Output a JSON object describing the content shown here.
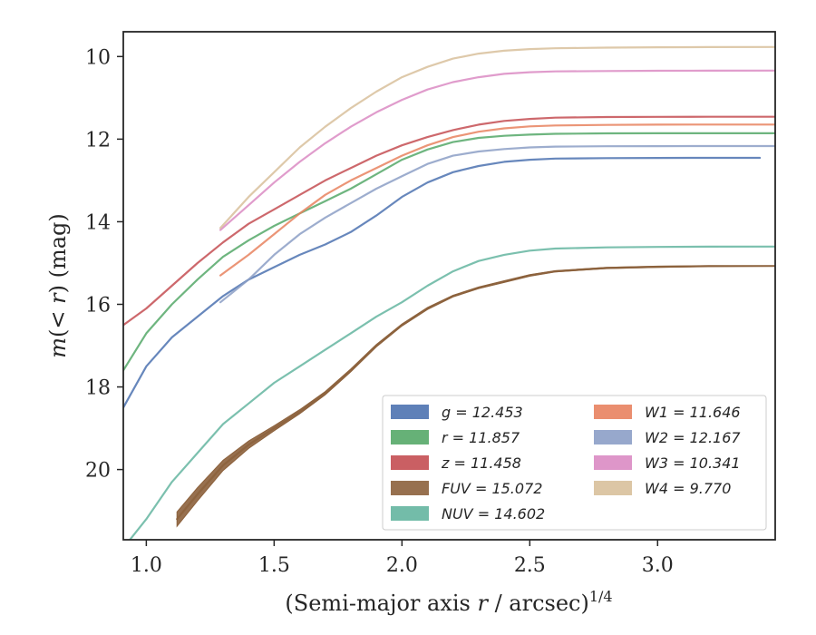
{
  "chart_data": {
    "type": "line",
    "title": "",
    "xlabel": "(Semi-major axis r / arcsec)^1/4",
    "ylabel": "m(< r) (mag)",
    "xlim": [
      0.91,
      3.46
    ],
    "ylim": [
      21.7,
      9.4
    ],
    "y_inverted": true,
    "x_ticks": [
      "1.0",
      "1.5",
      "2.0",
      "2.5",
      "3.0"
    ],
    "y_ticks": [
      "10",
      "12",
      "14",
      "16",
      "18",
      "20"
    ],
    "grid": false,
    "legend_position": "bottom-right",
    "series": [
      {
        "name": "g = 12.453",
        "color": "#4c72b0",
        "x": [
          0.91,
          1.0,
          1.1,
          1.2,
          1.3,
          1.4,
          1.5,
          1.6,
          1.7,
          1.8,
          1.9,
          2.0,
          2.1,
          2.2,
          2.3,
          2.4,
          2.5,
          2.6,
          2.8,
          3.0,
          3.2,
          3.4
        ],
        "y": [
          18.5,
          17.5,
          16.8,
          16.3,
          15.8,
          15.4,
          15.1,
          14.8,
          14.55,
          14.25,
          13.85,
          13.4,
          13.05,
          12.8,
          12.65,
          12.55,
          12.5,
          12.47,
          12.46,
          12.455,
          12.453,
          12.453
        ]
      },
      {
        "name": "r = 11.857",
        "color": "#55a868",
        "x": [
          0.91,
          1.0,
          1.1,
          1.2,
          1.3,
          1.4,
          1.5,
          1.6,
          1.7,
          1.8,
          1.9,
          2.0,
          2.1,
          2.2,
          2.3,
          2.4,
          2.5,
          2.6,
          2.8,
          3.0,
          3.2,
          3.46
        ],
        "y": [
          17.6,
          16.7,
          16.0,
          15.4,
          14.85,
          14.45,
          14.1,
          13.8,
          13.5,
          13.2,
          12.85,
          12.5,
          12.25,
          12.07,
          11.97,
          11.92,
          11.89,
          11.87,
          11.86,
          11.858,
          11.857,
          11.857
        ]
      },
      {
        "name": "z = 11.458",
        "color": "#c44e52",
        "x": [
          0.91,
          1.0,
          1.1,
          1.2,
          1.3,
          1.4,
          1.5,
          1.6,
          1.7,
          1.8,
          1.9,
          2.0,
          2.1,
          2.2,
          2.3,
          2.4,
          2.5,
          2.6,
          2.8,
          3.0,
          3.2,
          3.46
        ],
        "y": [
          16.5,
          16.1,
          15.55,
          15.0,
          14.5,
          14.05,
          13.7,
          13.35,
          13.0,
          12.7,
          12.4,
          12.15,
          11.95,
          11.78,
          11.65,
          11.56,
          11.51,
          11.48,
          11.465,
          11.46,
          11.458,
          11.458
        ]
      },
      {
        "name": "FUV = 15.072",
        "color": "#8c613c",
        "x": [
          1.12,
          1.2,
          1.3,
          1.4,
          1.5,
          1.6,
          1.7,
          1.8,
          1.9,
          2.0,
          2.1,
          2.2,
          2.3,
          2.4,
          2.5,
          2.6,
          2.8,
          3.0,
          3.2,
          3.46
        ],
        "y": [
          21.2,
          20.6,
          19.9,
          19.4,
          19.0,
          18.6,
          18.15,
          17.6,
          17.0,
          16.5,
          16.1,
          15.8,
          15.6,
          15.45,
          15.3,
          15.2,
          15.12,
          15.09,
          15.075,
          15.072
        ],
        "band": [
          0.35,
          0.32,
          0.25,
          0.18,
          0.12,
          0.1,
          0.08,
          0.07,
          0.06,
          0.05,
          0.05,
          0.04,
          0.04,
          0.04,
          0.04,
          0.03,
          0.03,
          0.03,
          0.02,
          0.0
        ]
      },
      {
        "name": "NUV = 14.602",
        "color": "#64b5a0",
        "x": [
          0.91,
          1.0,
          1.1,
          1.2,
          1.3,
          1.4,
          1.5,
          1.6,
          1.7,
          1.8,
          1.9,
          2.0,
          2.1,
          2.2,
          2.3,
          2.4,
          2.5,
          2.6,
          2.8,
          3.0,
          3.2,
          3.46
        ],
        "y": [
          21.9,
          21.2,
          20.3,
          19.6,
          18.9,
          18.4,
          17.9,
          17.5,
          17.1,
          16.7,
          16.3,
          15.95,
          15.55,
          15.2,
          14.95,
          14.8,
          14.7,
          14.65,
          14.62,
          14.61,
          14.603,
          14.602
        ]
      },
      {
        "name": "W1 = 11.646",
        "color": "#e8825f",
        "x": [
          1.29,
          1.4,
          1.5,
          1.6,
          1.7,
          1.8,
          1.9,
          2.0,
          2.1,
          2.2,
          2.3,
          2.4,
          2.5,
          2.6,
          2.8,
          3.0,
          3.2,
          3.46
        ],
        "y": [
          15.3,
          14.8,
          14.3,
          13.8,
          13.35,
          13.0,
          12.7,
          12.4,
          12.15,
          11.95,
          11.82,
          11.74,
          11.69,
          11.67,
          11.655,
          11.65,
          11.647,
          11.646
        ]
      },
      {
        "name": "W2 = 12.167",
        "color": "#8c9fc6",
        "x": [
          1.29,
          1.4,
          1.5,
          1.6,
          1.7,
          1.8,
          1.9,
          2.0,
          2.1,
          2.2,
          2.3,
          2.4,
          2.5,
          2.6,
          2.8,
          3.0,
          3.2,
          3.46
        ],
        "y": [
          15.95,
          15.4,
          14.8,
          14.3,
          13.9,
          13.55,
          13.2,
          12.9,
          12.6,
          12.4,
          12.3,
          12.24,
          12.2,
          12.18,
          12.172,
          12.169,
          12.167,
          12.167
        ]
      },
      {
        "name": "W3 = 10.341",
        "color": "#da8bc3",
        "x": [
          1.29,
          1.4,
          1.5,
          1.6,
          1.7,
          1.8,
          1.9,
          2.0,
          2.1,
          2.2,
          2.3,
          2.4,
          2.5,
          2.6,
          2.8,
          3.0,
          3.2,
          3.46
        ],
        "y": [
          14.2,
          13.6,
          13.05,
          12.55,
          12.1,
          11.7,
          11.35,
          11.05,
          10.8,
          10.62,
          10.5,
          10.42,
          10.38,
          10.36,
          10.35,
          10.345,
          10.342,
          10.341
        ]
      },
      {
        "name": "W4 = 9.770",
        "color": "#d8c09b",
        "x": [
          1.29,
          1.4,
          1.5,
          1.6,
          1.7,
          1.8,
          1.9,
          2.0,
          2.1,
          2.2,
          2.3,
          2.4,
          2.5,
          2.6,
          2.8,
          3.0,
          3.2,
          3.46
        ],
        "y": [
          14.15,
          13.4,
          12.8,
          12.2,
          11.7,
          11.25,
          10.85,
          10.5,
          10.25,
          10.05,
          9.93,
          9.86,
          9.82,
          9.8,
          9.785,
          9.775,
          9.772,
          9.77
        ]
      }
    ]
  }
}
